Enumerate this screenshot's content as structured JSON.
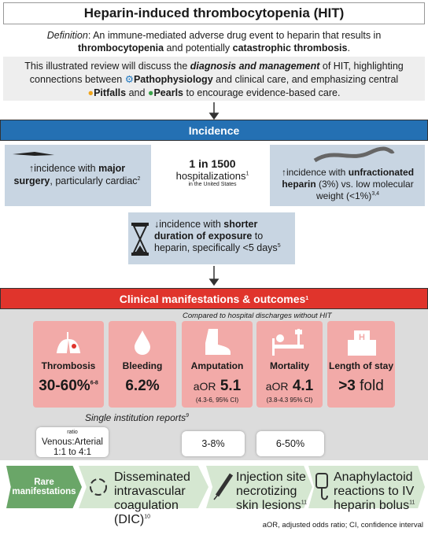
{
  "header": {
    "title": "Heparin-induced thrombocytopenia (HIT)",
    "definition": [
      "Definition",
      ": An immune-mediated adverse drug event to heparin that results in ",
      "thrombocytopenia",
      " and potentially ",
      "catastrophic thrombosis",
      "."
    ],
    "intro": [
      "This illustrated review will discuss the ",
      "diagnosis and management",
      " of HIT, highlighting connections between ",
      "Pathophysiology",
      " and clinical care, and emphasizing central ",
      "Pitfalls",
      " and ",
      "Pearls",
      " to encourage evidence-based care."
    ]
  },
  "incidence": {
    "heading": "Incidence",
    "surgery": [
      "↑incidence with ",
      "major surgery",
      ", particularly cardiac",
      "2"
    ],
    "center": [
      "1 in 1500",
      "hospitalizations",
      "1",
      "in the United States"
    ],
    "heparin": [
      "↑incidence with ",
      "unfractionated heparin",
      " (3%) vs. low molecular weight (<1%)",
      "3,4"
    ],
    "duration": [
      "↓incidence with ",
      "shorter duration of exposure",
      " to heparin, specifically <5 days",
      "5"
    ]
  },
  "clinical": {
    "heading": "Clinical manifestations & outcomes",
    "heading_ref": "1",
    "note": "Compared to hospital discharges without HIT",
    "cards": [
      {
        "label": "Thrombosis",
        "value": "30-60%",
        "ref": "6-8"
      },
      {
        "label": "Bleeding",
        "value": "6.2%"
      },
      {
        "label": "Amputation",
        "prefix": "aOR",
        "value": "5.1",
        "ci": "(4.3-6, 95% CI)"
      },
      {
        "label": "Mortality",
        "prefix": "aOR",
        "value": "4.1",
        "ci": "(3.8-4.3 95% CI)"
      },
      {
        "label": "Length of stay",
        "value": ">3",
        "suffix": "fold"
      }
    ],
    "single": "Single institution reports",
    "single_ref": "9",
    "ratio": {
      "small": "ratio",
      "text": "Venous:Arterial",
      "range": "1:1 to 4:1"
    },
    "amputation_rate": "3-8%",
    "mortality_rate": "6-50%"
  },
  "rare": {
    "label": "Rare manifestations",
    "items": [
      {
        "text": "Disseminated intravascular coagulation (DIC)",
        "ref": "10"
      },
      {
        "text": "Injection site necrotizing skin lesions",
        "ref": "11"
      },
      {
        "text": "Anaphylactoid reactions to IV heparin bolus",
        "ref": "11"
      }
    ]
  },
  "footer": "aOR, adjusted odds ratio; CI, confidence interval"
}
